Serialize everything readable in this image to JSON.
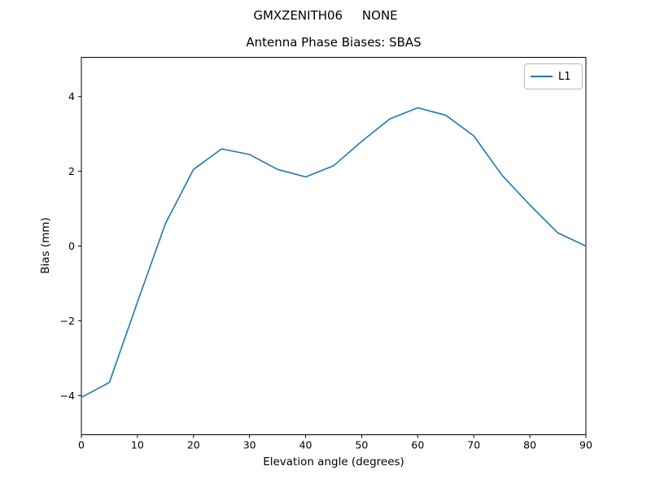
{
  "chart_data": {
    "type": "line",
    "figure_title": "GMXZENITH06     NONE",
    "title": "Antenna Phase Biases: SBAS",
    "xlabel": "Elevation angle (degrees)",
    "ylabel": "Bias (mm)",
    "xlim": [
      0,
      90
    ],
    "ylim": [
      -5.05,
      5.05
    ],
    "xticks": [
      0,
      10,
      20,
      30,
      40,
      50,
      60,
      70,
      80,
      90
    ],
    "yticks": [
      -4,
      -2,
      0,
      2,
      4
    ],
    "grid": false,
    "axis_color": "#000000",
    "text_color": "#000000",
    "legend": {
      "position": "upper right",
      "entries": [
        "L1"
      ]
    },
    "series": [
      {
        "name": "L1",
        "color": "#1f77b4",
        "x": [
          0,
          5,
          10,
          15,
          20,
          25,
          30,
          35,
          40,
          45,
          50,
          55,
          60,
          65,
          70,
          75,
          80,
          85,
          90
        ],
        "y": [
          -4.05,
          -3.65,
          -1.5,
          0.6,
          2.05,
          2.6,
          2.45,
          2.05,
          1.85,
          2.15,
          2.8,
          3.4,
          3.7,
          3.5,
          2.95,
          1.9,
          1.1,
          0.35,
          0.0
        ]
      }
    ]
  }
}
